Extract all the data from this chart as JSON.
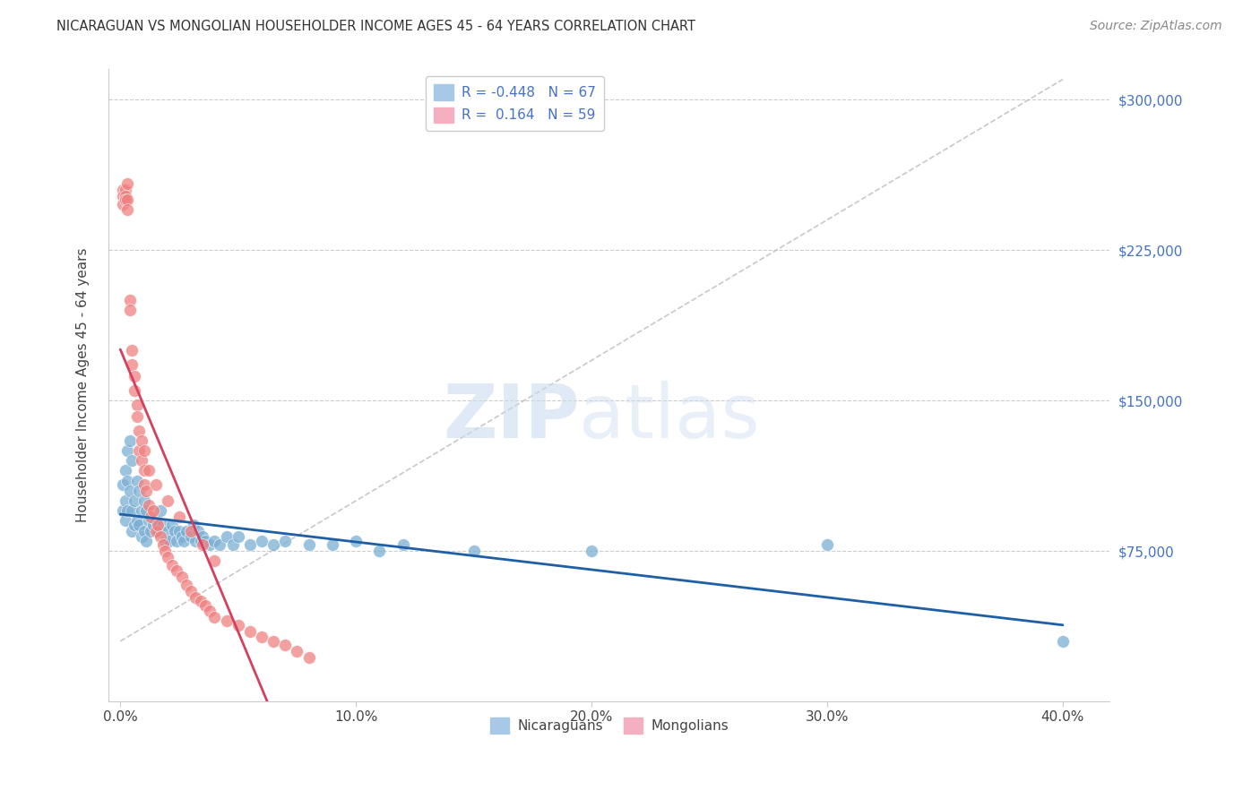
{
  "title": "NICARAGUAN VS MONGOLIAN HOUSEHOLDER INCOME AGES 45 - 64 YEARS CORRELATION CHART",
  "source": "Source: ZipAtlas.com",
  "xlabel_ticks": [
    "0.0%",
    "10.0%",
    "20.0%",
    "30.0%",
    "40.0%"
  ],
  "xlabel_tick_vals": [
    0.0,
    0.1,
    0.2,
    0.3,
    0.4
  ],
  "ylabel": "Householder Income Ages 45 - 64 years",
  "ytick_vals": [
    0,
    75000,
    150000,
    225000,
    300000
  ],
  "ytick_labels": [
    "",
    "$75,000",
    "$150,000",
    "$225,000",
    "$300,000"
  ],
  "xlim": [
    -0.005,
    0.42
  ],
  "ylim": [
    0,
    315000
  ],
  "blue_color": "#7bafd4",
  "pink_color": "#f08080",
  "blue_line_color": "#1f5fa6",
  "pink_line_color": "#d44060",
  "blue_scatter_x": [
    0.001,
    0.001,
    0.002,
    0.002,
    0.002,
    0.003,
    0.003,
    0.003,
    0.004,
    0.004,
    0.005,
    0.005,
    0.005,
    0.006,
    0.006,
    0.007,
    0.007,
    0.008,
    0.008,
    0.009,
    0.009,
    0.01,
    0.01,
    0.011,
    0.011,
    0.012,
    0.013,
    0.014,
    0.015,
    0.016,
    0.017,
    0.018,
    0.019,
    0.02,
    0.021,
    0.022,
    0.023,
    0.024,
    0.025,
    0.026,
    0.027,
    0.028,
    0.03,
    0.031,
    0.032,
    0.033,
    0.034,
    0.035,
    0.036,
    0.038,
    0.04,
    0.042,
    0.045,
    0.048,
    0.05,
    0.055,
    0.06,
    0.065,
    0.07,
    0.08,
    0.09,
    0.1,
    0.11,
    0.12,
    0.15,
    0.2,
    0.3,
    0.4
  ],
  "blue_scatter_y": [
    108000,
    95000,
    115000,
    100000,
    90000,
    125000,
    110000,
    95000,
    130000,
    105000,
    120000,
    95000,
    85000,
    100000,
    88000,
    110000,
    90000,
    105000,
    88000,
    95000,
    82000,
    100000,
    85000,
    95000,
    80000,
    90000,
    85000,
    88000,
    90000,
    85000,
    95000,
    88000,
    80000,
    85000,
    80000,
    88000,
    85000,
    80000,
    85000,
    82000,
    80000,
    85000,
    82000,
    88000,
    80000,
    85000,
    80000,
    82000,
    80000,
    78000,
    80000,
    78000,
    82000,
    78000,
    82000,
    78000,
    80000,
    78000,
    80000,
    78000,
    78000,
    80000,
    75000,
    78000,
    75000,
    75000,
    78000,
    30000
  ],
  "pink_scatter_x": [
    0.001,
    0.001,
    0.001,
    0.002,
    0.002,
    0.002,
    0.003,
    0.003,
    0.003,
    0.004,
    0.004,
    0.005,
    0.005,
    0.006,
    0.006,
    0.007,
    0.007,
    0.008,
    0.008,
    0.009,
    0.01,
    0.01,
    0.011,
    0.012,
    0.013,
    0.014,
    0.015,
    0.016,
    0.017,
    0.018,
    0.019,
    0.02,
    0.022,
    0.024,
    0.026,
    0.028,
    0.03,
    0.032,
    0.034,
    0.036,
    0.038,
    0.04,
    0.045,
    0.05,
    0.055,
    0.06,
    0.065,
    0.07,
    0.075,
    0.08,
    0.009,
    0.01,
    0.012,
    0.015,
    0.02,
    0.025,
    0.03,
    0.035,
    0.04
  ],
  "pink_scatter_y": [
    255000,
    252000,
    248000,
    255000,
    252000,
    250000,
    258000,
    250000,
    245000,
    200000,
    195000,
    175000,
    168000,
    162000,
    155000,
    148000,
    142000,
    135000,
    125000,
    120000,
    115000,
    108000,
    105000,
    98000,
    92000,
    95000,
    85000,
    88000,
    82000,
    78000,
    75000,
    72000,
    68000,
    65000,
    62000,
    58000,
    55000,
    52000,
    50000,
    48000,
    45000,
    42000,
    40000,
    38000,
    35000,
    32000,
    30000,
    28000,
    25000,
    22000,
    130000,
    125000,
    115000,
    108000,
    100000,
    92000,
    85000,
    78000,
    70000
  ]
}
